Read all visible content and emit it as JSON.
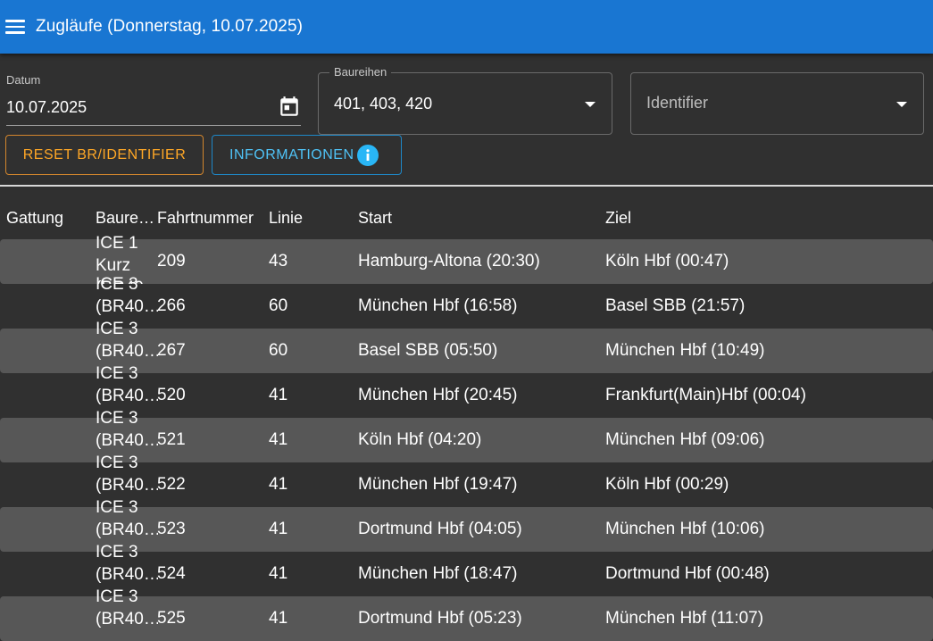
{
  "header": {
    "title": "Zugläufe (Donnerstag, 10.07.2025)"
  },
  "filters": {
    "date": {
      "label": "Datum",
      "value": "10.07.2025"
    },
    "baureihen": {
      "label": "Baureihen",
      "value": "401, 403, 420"
    },
    "identifier": {
      "placeholder": "Identifier"
    }
  },
  "buttons": {
    "reset": "RESET BR/IDENTIFIER",
    "info": "INFORMATIONEN"
  },
  "table": {
    "headers": {
      "gattung": "Gattung",
      "baureihe": "Baure…",
      "fahrtnummer": "Fahrtnummer",
      "linie": "Linie",
      "start": "Start",
      "ziel": "Ziel"
    },
    "rows": [
      {
        "type": [
          "ICE 1",
          "Kurz",
          "(BR40…"
        ],
        "nr": "209",
        "linie": "43",
        "start": "Hamburg-Altona (20:30)",
        "ziel": "Köln Hbf (00:47)"
      },
      {
        "type": [
          "ICE 3",
          "(BR40…"
        ],
        "nr": "266",
        "linie": "60",
        "start": "München Hbf (16:58)",
        "ziel": "Basel SBB (21:57)"
      },
      {
        "type": [
          "ICE 3",
          "(BR40…"
        ],
        "nr": "267",
        "linie": "60",
        "start": "Basel SBB (05:50)",
        "ziel": "München Hbf (10:49)"
      },
      {
        "type": [
          "ICE 3",
          "(BR40…"
        ],
        "nr": "520",
        "linie": "41",
        "start": "München Hbf (20:45)",
        "ziel": "Frankfurt(Main)Hbf (00:04)"
      },
      {
        "type": [
          "ICE 3",
          "(BR40…"
        ],
        "nr": "521",
        "linie": "41",
        "start": "Köln Hbf (04:20)",
        "ziel": "München Hbf (09:06)"
      },
      {
        "type": [
          "ICE 3",
          "(BR40…"
        ],
        "nr": "522",
        "linie": "41",
        "start": "München Hbf (19:47)",
        "ziel": "Köln Hbf (00:29)"
      },
      {
        "type": [
          "ICE 3",
          "(BR40…"
        ],
        "nr": "523",
        "linie": "41",
        "start": "Dortmund Hbf (04:05)",
        "ziel": "München Hbf (10:06)"
      },
      {
        "type": [
          "ICE 3",
          "(BR40…"
        ],
        "nr": "524",
        "linie": "41",
        "start": "München Hbf (18:47)",
        "ziel": "Dortmund Hbf (00:48)"
      },
      {
        "type": [
          "ICE 3",
          "(BR40…"
        ],
        "nr": "525",
        "linie": "41",
        "start": "Dortmund Hbf (05:23)",
        "ziel": "München Hbf (11:07)"
      }
    ]
  },
  "colors": {
    "appbar": "#1976d2",
    "background": "#303030",
    "row_alt": "#575757",
    "reset_accent": "#ffa726",
    "info_accent": "#4fc3f7"
  },
  "icons": {
    "menu": "menu-icon",
    "calendar": "calendar-icon",
    "dropdown": "chevron-down-icon",
    "info": "info-icon"
  }
}
